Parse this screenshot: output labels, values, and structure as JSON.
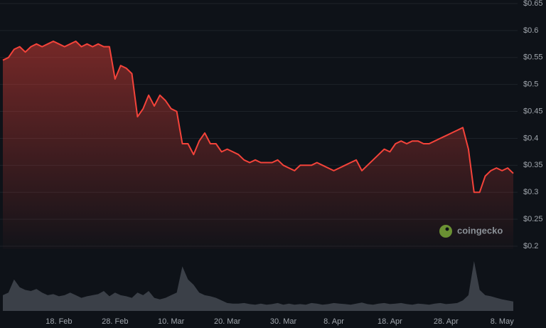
{
  "chart_data": [
    {
      "type": "line",
      "x": [
        "8 Feb",
        "9 Feb",
        "10 Feb",
        "11 Feb",
        "12 Feb",
        "13 Feb",
        "14 Feb",
        "15 Feb",
        "16 Feb",
        "17 Feb",
        "18 Feb",
        "19 Feb",
        "20 Feb",
        "21 Feb",
        "22 Feb",
        "23 Feb",
        "24 Feb",
        "25 Feb",
        "26 Feb",
        "27 Feb",
        "28 Feb",
        "1 Mar",
        "2 Mar",
        "3 Mar",
        "4 Mar",
        "5 Mar",
        "6 Mar",
        "7 Mar",
        "8 Mar",
        "9 Mar",
        "10 Mar",
        "11 Mar",
        "12 Mar",
        "13 Mar",
        "14 Mar",
        "15 Mar",
        "16 Mar",
        "17 Mar",
        "18 Mar",
        "19 Mar",
        "20 Mar",
        "21 Mar",
        "22 Mar",
        "23 Mar",
        "24 Mar",
        "25 Mar",
        "26 Mar",
        "27 Mar",
        "28 Mar",
        "29 Mar",
        "30 Mar",
        "31 Mar",
        "1 Apr",
        "2 Apr",
        "3 Apr",
        "4 Apr",
        "5 Apr",
        "6 Apr",
        "7 Apr",
        "8 Apr",
        "9 Apr",
        "10 Apr",
        "11 Apr",
        "12 Apr",
        "13 Apr",
        "14 Apr",
        "15 Apr",
        "16 Apr",
        "17 Apr",
        "18 Apr",
        "19 Apr",
        "20 Apr",
        "21 Apr",
        "22 Apr",
        "23 Apr",
        "24 Apr",
        "25 Apr",
        "26 Apr",
        "27 Apr",
        "28 Apr",
        "29 Apr",
        "30 Apr",
        "1 May",
        "2 May",
        "3 May",
        "4 May",
        "5 May",
        "6 May",
        "7 May",
        "8 May",
        "9 May",
        "10 May"
      ],
      "series": [
        {
          "color": "#f4433a",
          "values": [
            0.545,
            0.55,
            0.565,
            0.57,
            0.56,
            0.57,
            0.575,
            0.57,
            0.575,
            0.58,
            0.575,
            0.57,
            0.575,
            0.58,
            0.57,
            0.575,
            0.57,
            0.575,
            0.57,
            0.57,
            0.51,
            0.535,
            0.53,
            0.52,
            0.44,
            0.455,
            0.48,
            0.46,
            0.48,
            0.47,
            0.455,
            0.45,
            0.39,
            0.39,
            0.37,
            0.395,
            0.41,
            0.39,
            0.39,
            0.375,
            0.38,
            0.375,
            0.37,
            0.36,
            0.355,
            0.36,
            0.355,
            0.355,
            0.355,
            0.36,
            0.35,
            0.345,
            0.34,
            0.35,
            0.35,
            0.35,
            0.355,
            0.35,
            0.345,
            0.34,
            0.345,
            0.35,
            0.355,
            0.36,
            0.34,
            0.35,
            0.36,
            0.37,
            0.38,
            0.375,
            0.39,
            0.395,
            0.39,
            0.395,
            0.395,
            0.39,
            0.39,
            0.395,
            0.4,
            0.405,
            0.41,
            0.415,
            0.42,
            0.38,
            0.3,
            0.3,
            0.33,
            0.34,
            0.345,
            0.34,
            0.345,
            0.335
          ]
        }
      ],
      "ylim": [
        0.2,
        0.65
      ],
      "yticks": [
        {
          "value": 0.2,
          "label": "$0.2"
        },
        {
          "value": 0.25,
          "label": "$0.25"
        },
        {
          "value": 0.3,
          "label": "$0.3"
        },
        {
          "value": 0.35,
          "label": "$0.35"
        },
        {
          "value": 0.4,
          "label": "$0.4"
        },
        {
          "value": 0.45,
          "label": "$0.45"
        },
        {
          "value": 0.5,
          "label": "$0.5"
        },
        {
          "value": 0.55,
          "label": "$0.55"
        },
        {
          "value": 0.6,
          "label": "$0.6"
        },
        {
          "value": 0.65,
          "label": "$0.65"
        }
      ],
      "xticks": [
        {
          "value": "18 Feb",
          "label": "18. Feb"
        },
        {
          "value": "28 Feb",
          "label": "28. Feb"
        },
        {
          "value": "10 Mar",
          "label": "10. Mar"
        },
        {
          "value": "20 Mar",
          "label": "20. Mar"
        },
        {
          "value": "30 Mar",
          "label": "30. Mar"
        },
        {
          "value": "8 Apr",
          "label": "8. Apr"
        },
        {
          "value": "18 Apr",
          "label": "18. Apr"
        },
        {
          "value": "28 Apr",
          "label": "28. Apr"
        },
        {
          "value": "8 May",
          "label": "8. May"
        }
      ],
      "grid": true,
      "watermark": "coingecko"
    },
    {
      "type": "area",
      "color": "#3b4048",
      "values": [
        30,
        35,
        60,
        45,
        40,
        38,
        42,
        35,
        30,
        32,
        28,
        30,
        35,
        30,
        25,
        28,
        30,
        32,
        38,
        28,
        35,
        30,
        28,
        25,
        35,
        30,
        38,
        25,
        22,
        25,
        30,
        35,
        85,
        60,
        50,
        35,
        30,
        28,
        25,
        20,
        15,
        14,
        14,
        15,
        13,
        12,
        14,
        12,
        13,
        15,
        12,
        14,
        12,
        13,
        12,
        15,
        14,
        12,
        13,
        15,
        14,
        13,
        12,
        14,
        16,
        13,
        12,
        14,
        15,
        13,
        14,
        15,
        13,
        12,
        14,
        13,
        12,
        14,
        15,
        13,
        14,
        15,
        20,
        30,
        95,
        40,
        30,
        28,
        25,
        22,
        20,
        18
      ]
    }
  ]
}
